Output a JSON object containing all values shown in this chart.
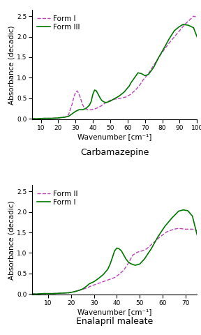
{
  "plot1": {
    "title": "Carbamazepine",
    "xlabel": "Wavenumber [cm⁻¹]",
    "ylabel": "Absorbance (decadic)",
    "xlim": [
      5,
      100
    ],
    "ylim": [
      -0.02,
      2.65
    ],
    "yticks": [
      0.0,
      0.5,
      1.0,
      1.5,
      2.0,
      2.5
    ],
    "xticks": [
      10,
      20,
      30,
      40,
      50,
      60,
      70,
      80,
      90,
      100
    ],
    "legend": [
      {
        "label": "Form I",
        "color": "#bb44bb",
        "linestyle": "dashed"
      },
      {
        "label": "Form III",
        "color": "#007700",
        "linestyle": "solid"
      }
    ],
    "form1_x": [
      5,
      8,
      12,
      16,
      20,
      24,
      26,
      28,
      29,
      30,
      31,
      32,
      33,
      34,
      35,
      37,
      39,
      41,
      43,
      45,
      47,
      50,
      53,
      56,
      59,
      62,
      65,
      67,
      69,
      72,
      75,
      78,
      81,
      84,
      87,
      90,
      93,
      96,
      98,
      100
    ],
    "form1_y": [
      0.0,
      0.0,
      0.01,
      0.01,
      0.02,
      0.04,
      0.1,
      0.35,
      0.52,
      0.65,
      0.68,
      0.6,
      0.48,
      0.35,
      0.27,
      0.22,
      0.22,
      0.24,
      0.27,
      0.32,
      0.38,
      0.45,
      0.48,
      0.5,
      0.53,
      0.6,
      0.72,
      0.82,
      0.95,
      1.1,
      1.3,
      1.5,
      1.68,
      1.85,
      2.0,
      2.15,
      2.3,
      2.42,
      2.5,
      2.48
    ],
    "form3_x": [
      5,
      8,
      12,
      16,
      20,
      24,
      26,
      28,
      30,
      32,
      34,
      36,
      38,
      39,
      40,
      41,
      42,
      43,
      44,
      45,
      46,
      47,
      48,
      50,
      52,
      55,
      58,
      61,
      62,
      64,
      66,
      68,
      70,
      72,
      75,
      78,
      81,
      84,
      87,
      90,
      92,
      95,
      98,
      100
    ],
    "form3_y": [
      0.0,
      0.0,
      0.01,
      0.01,
      0.02,
      0.04,
      0.06,
      0.12,
      0.18,
      0.22,
      0.22,
      0.25,
      0.33,
      0.42,
      0.6,
      0.7,
      0.68,
      0.6,
      0.52,
      0.45,
      0.42,
      0.4,
      0.4,
      0.43,
      0.48,
      0.55,
      0.65,
      0.8,
      0.88,
      1.0,
      1.12,
      1.1,
      1.05,
      1.08,
      1.25,
      1.5,
      1.72,
      1.95,
      2.15,
      2.25,
      2.3,
      2.28,
      2.22,
      2.0
    ]
  },
  "plot2": {
    "title": "Enalapril maleate",
    "xlabel": "Wavenumber [cm⁻¹]",
    "ylabel": "Absorbance (decadic)",
    "xlim": [
      3,
      75
    ],
    "ylim": [
      -0.02,
      2.65
    ],
    "yticks": [
      0.0,
      0.5,
      1.0,
      1.5,
      2.0,
      2.5
    ],
    "xticks": [
      10,
      20,
      30,
      40,
      50,
      60,
      70
    ],
    "legend": [
      {
        "label": "Form II",
        "color": "#bb44bb",
        "linestyle": "dashed"
      },
      {
        "label": "Form I",
        "color": "#007700",
        "linestyle": "solid"
      }
    ],
    "form2_x": [
      3,
      5,
      8,
      12,
      16,
      19,
      21,
      23,
      25,
      27,
      29,
      31,
      33,
      35,
      37,
      39,
      41,
      43,
      45,
      47,
      49,
      51,
      53,
      56,
      59,
      62,
      65,
      67,
      70,
      73,
      75
    ],
    "form2_y": [
      0.0,
      0.0,
      0.01,
      0.01,
      0.02,
      0.03,
      0.05,
      0.08,
      0.11,
      0.15,
      0.2,
      0.24,
      0.28,
      0.32,
      0.36,
      0.4,
      0.48,
      0.58,
      0.75,
      0.95,
      1.02,
      1.05,
      1.1,
      1.25,
      1.4,
      1.52,
      1.58,
      1.6,
      1.58,
      1.58,
      1.55
    ],
    "form1_x": [
      3,
      5,
      8,
      12,
      16,
      19,
      21,
      23,
      25,
      26,
      27,
      28,
      30,
      32,
      34,
      36,
      37,
      38,
      39,
      40,
      41,
      42,
      43,
      44,
      45,
      46,
      47,
      48,
      50,
      52,
      55,
      58,
      61,
      64,
      67,
      69,
      71,
      73,
      75
    ],
    "form1_y": [
      0.0,
      0.0,
      0.01,
      0.01,
      0.02,
      0.03,
      0.05,
      0.08,
      0.12,
      0.16,
      0.2,
      0.25,
      0.3,
      0.38,
      0.47,
      0.6,
      0.72,
      0.88,
      1.05,
      1.12,
      1.1,
      1.05,
      0.95,
      0.85,
      0.78,
      0.74,
      0.72,
      0.7,
      0.73,
      0.85,
      1.1,
      1.4,
      1.65,
      1.85,
      2.02,
      2.05,
      2.03,
      1.9,
      1.45
    ]
  },
  "purple": "#bb44bb",
  "green": "#007700",
  "background": "#ffffff",
  "title_fontsize": 9,
  "label_fontsize": 7.5,
  "tick_fontsize": 6.5,
  "legend_fontsize": 7.5
}
